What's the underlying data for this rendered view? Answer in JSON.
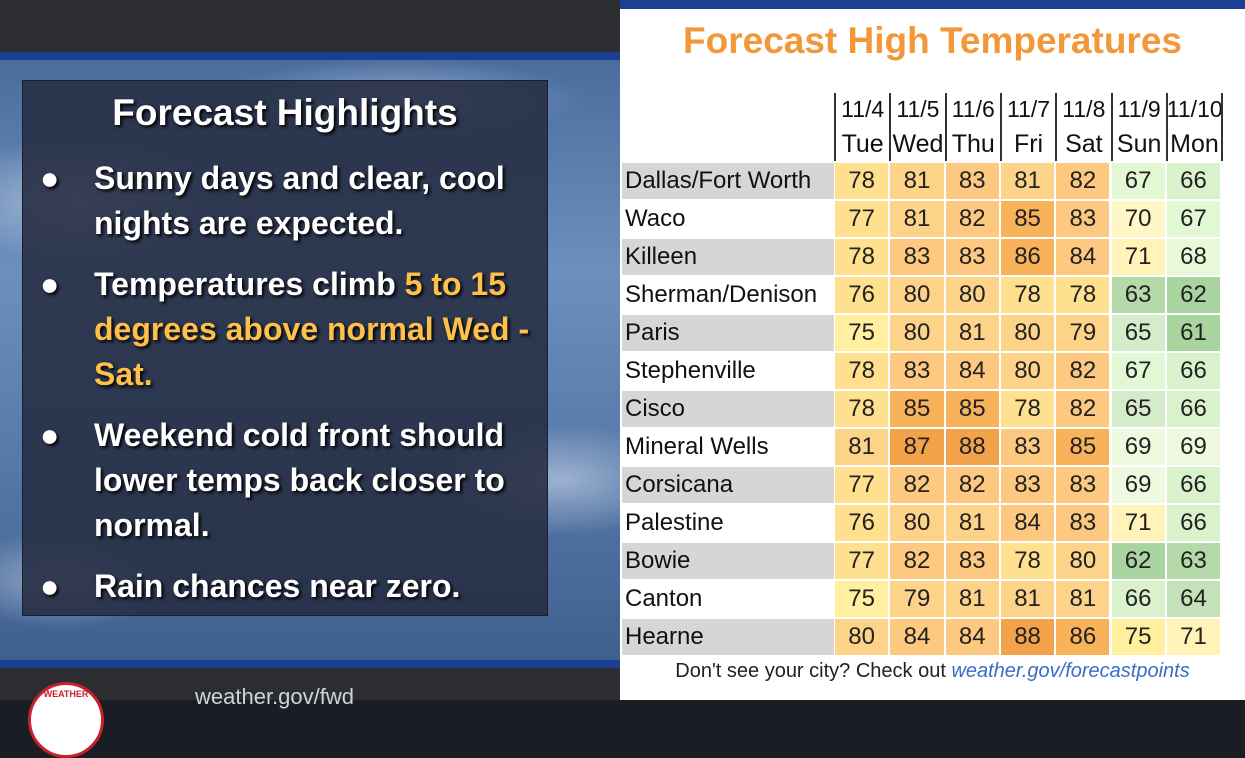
{
  "left_panel": {
    "title": "Forecast Highlights",
    "bullets": [
      {
        "dot": "●",
        "text_before": "Sunny days and clear, cool nights are expected.",
        "highlight": "",
        "text_after": ""
      },
      {
        "dot": "●",
        "text_before": "Temperatures climb ",
        "highlight": "5 to 15 degrees above normal Wed - Sat.",
        "text_after": ""
      },
      {
        "dot": "●",
        "text_before": "Weekend cold front should lower temps back closer to normal.",
        "highlight": "",
        "text_after": ""
      },
      {
        "dot": "●",
        "text_before": "Rain chances near zero.",
        "highlight": "",
        "text_after": ""
      }
    ],
    "highlight_color": "#ffc04a",
    "footer_url": "weather.gov/fwd",
    "logo_text": "WEATHER"
  },
  "right_panel": {
    "title": "Forecast High Temperatures",
    "title_color": "#f39839",
    "note_text": "Don't see your city? Check out ",
    "note_link": "weather.gov/forecastpoints"
  },
  "colors": {
    "brand_blue": "#1c3f93",
    "t61": "#a9d4a0",
    "t62": "#a9d4a0",
    "t63": "#b5daa9",
    "t64": "#c4e2b8",
    "t65": "#d4ecc9",
    "t66": "#daf2cc",
    "t67": "#e2f7d4",
    "t68": "#e8f9da",
    "t69": "#eefadf",
    "t70": "#fff7c5",
    "t71": "#fff3b8",
    "t75": "#ffef9e",
    "t76": "#ffe08f",
    "t77": "#ffe08f",
    "t78": "#ffe08f",
    "t79": "#fdd38a",
    "t80": "#fdd38a",
    "t81": "#fdd38a",
    "t82": "#fdc980",
    "t83": "#fdc980",
    "t84": "#fdc980",
    "t85": "#f7b25a",
    "t86": "#f7b25a",
    "t87": "#f2a34a",
    "t88": "#f2a34a"
  },
  "chart_data": {
    "type": "table",
    "dates": [
      "11/4",
      "11/5",
      "11/6",
      "11/7",
      "11/8",
      "11/9",
      "11/10"
    ],
    "days": [
      "Tue",
      "Wed",
      "Thu",
      "Fri",
      "Sat",
      "Sun",
      "Mon"
    ],
    "rows": [
      {
        "city": "Dallas/Fort Worth",
        "temps": [
          78,
          81,
          83,
          81,
          82,
          67,
          66
        ]
      },
      {
        "city": "Waco",
        "temps": [
          77,
          81,
          82,
          85,
          83,
          70,
          67
        ]
      },
      {
        "city": "Killeen",
        "temps": [
          78,
          83,
          83,
          86,
          84,
          71,
          68
        ]
      },
      {
        "city": "Sherman/Denison",
        "temps": [
          76,
          80,
          80,
          78,
          78,
          63,
          62
        ]
      },
      {
        "city": "Paris",
        "temps": [
          75,
          80,
          81,
          80,
          79,
          65,
          61
        ]
      },
      {
        "city": "Stephenville",
        "temps": [
          78,
          83,
          84,
          80,
          82,
          67,
          66
        ]
      },
      {
        "city": "Cisco",
        "temps": [
          78,
          85,
          85,
          78,
          82,
          65,
          66
        ]
      },
      {
        "city": "Mineral Wells",
        "temps": [
          81,
          87,
          88,
          83,
          85,
          69,
          69
        ]
      },
      {
        "city": "Corsicana",
        "temps": [
          77,
          82,
          82,
          83,
          83,
          69,
          66
        ]
      },
      {
        "city": "Palestine",
        "temps": [
          76,
          80,
          81,
          84,
          83,
          71,
          66
        ]
      },
      {
        "city": "Bowie",
        "temps": [
          77,
          82,
          83,
          78,
          80,
          62,
          63
        ]
      },
      {
        "city": "Canton",
        "temps": [
          75,
          79,
          81,
          81,
          81,
          66,
          64
        ]
      },
      {
        "city": "Hearne",
        "temps": [
          80,
          84,
          84,
          88,
          86,
          75,
          71
        ]
      }
    ]
  }
}
